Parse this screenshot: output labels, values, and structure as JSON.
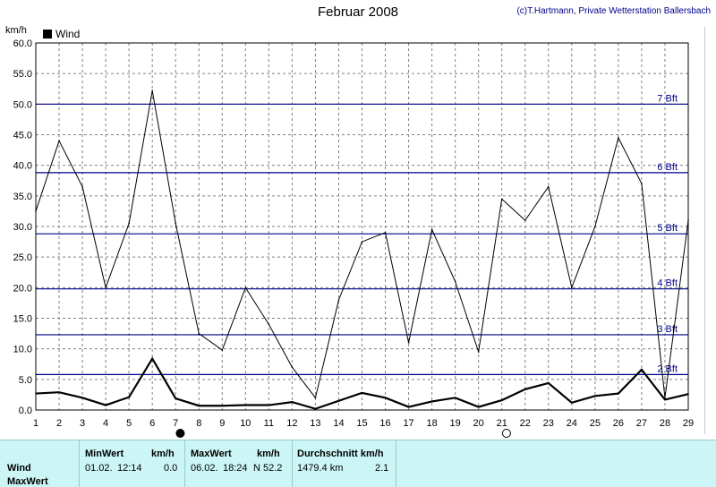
{
  "title": "Februar 2008",
  "credit": "(c)T.Hartmann, Private Wetterstation Ballersbach",
  "y_unit": "km/h",
  "legend": {
    "label": "Wind"
  },
  "colors": {
    "wind_line": "#000000",
    "beaufort_line": "#00008b",
    "grid": "#808080",
    "footer_bg": "#ccf5f5"
  },
  "footer": {
    "row_labels": [
      "Wind",
      "MaxWert"
    ],
    "min": {
      "header": "MinWert",
      "unit": "km/h",
      "date": "01.02.",
      "time": "12:14",
      "value": "0.0"
    },
    "max": {
      "header": "MaxWert",
      "unit": "km/h",
      "date": "06.02.",
      "time": "18:24",
      "value": "N 52.2"
    },
    "avg": {
      "header": "Durchschnitt km/h",
      "distance": "1479.4 km",
      "value": "2.1"
    }
  },
  "chart_data": {
    "type": "line",
    "title": "Februar 2008",
    "ylabel": "km/h",
    "ylim": [
      0,
      60
    ],
    "yticks": [
      "0.0",
      "5.0",
      "10.0",
      "15.0",
      "20.0",
      "25.0",
      "30.0",
      "35.0",
      "40.0",
      "45.0",
      "50.0",
      "55.0",
      "60.0"
    ],
    "x": [
      1,
      2,
      3,
      4,
      5,
      6,
      7,
      8,
      9,
      10,
      11,
      12,
      13,
      14,
      15,
      16,
      17,
      18,
      19,
      20,
      21,
      22,
      23,
      24,
      25,
      26,
      27,
      28,
      29
    ],
    "grid": true,
    "legend_position": "top-left",
    "series": [
      {
        "name": "Wind",
        "role": "max",
        "values": [
          32.5,
          44.0,
          36.5,
          20.0,
          30.5,
          52.2,
          30.5,
          12.5,
          9.8,
          20.0,
          14.0,
          7.0,
          2.0,
          18.0,
          27.5,
          29.0,
          11.0,
          29.5,
          21.0,
          9.5,
          34.5,
          31.0,
          36.5,
          20.0,
          30.0,
          44.5,
          37.0,
          2.0,
          31.0
        ]
      },
      {
        "name": "Wind",
        "role": "mean",
        "values": [
          2.7,
          2.9,
          2.0,
          0.8,
          2.1,
          8.4,
          1.9,
          0.7,
          0.7,
          0.8,
          0.8,
          1.3,
          0.2,
          1.5,
          2.8,
          2.0,
          0.5,
          1.4,
          2.0,
          0.5,
          1.6,
          3.4,
          4.4,
          1.2,
          2.3,
          2.7,
          6.6,
          1.7,
          2.6
        ]
      }
    ],
    "beaufort_lines": [
      {
        "label": "2 Bft",
        "value": 5.8
      },
      {
        "label": "3 Bft",
        "value": 12.3
      },
      {
        "label": "4 Bft",
        "value": 19.8
      },
      {
        "label": "5 Bft",
        "value": 28.8
      },
      {
        "label": "6 Bft",
        "value": 38.8
      },
      {
        "label": "7 Bft",
        "value": 50.0
      }
    ],
    "moon_phases": [
      {
        "phase": "new",
        "day": 7.2
      },
      {
        "phase": "full",
        "day": 21.2
      }
    ]
  }
}
